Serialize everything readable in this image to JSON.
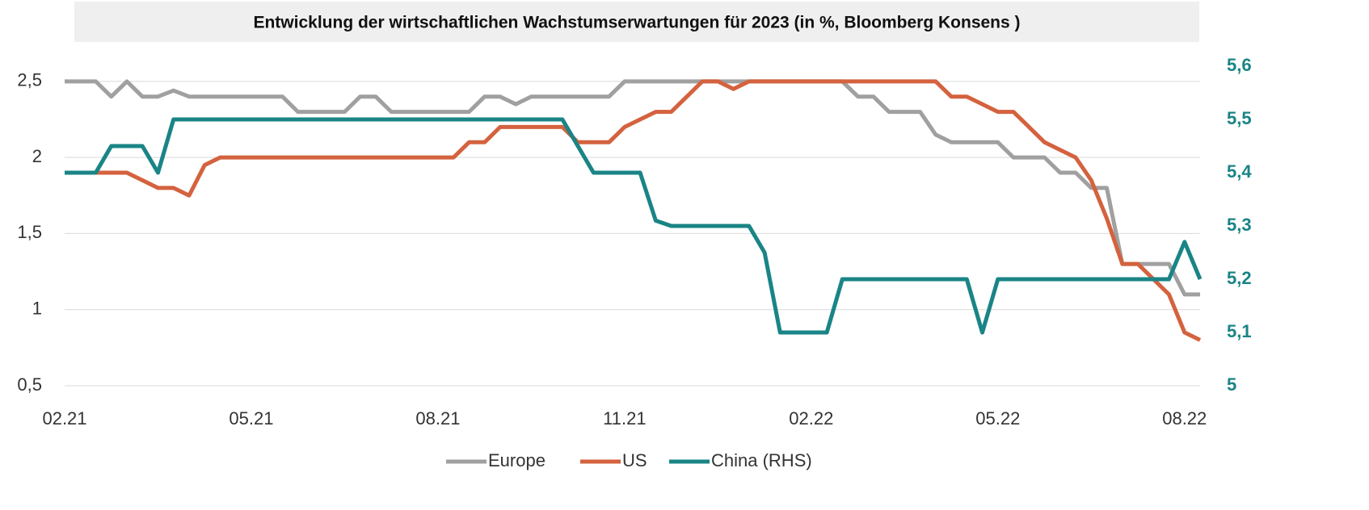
{
  "chart_data": {
    "type": "line",
    "title": "Entwicklung der wirtschaftlichen Wachstumserwartungen für 2023 (in %, Bloomberg Konsens )",
    "x": [
      0,
      0.25,
      0.5,
      0.75,
      1,
      1.25,
      1.5,
      1.75,
      2,
      2.25,
      2.5,
      2.75,
      3,
      3.25,
      3.5,
      3.75,
      4,
      4.25,
      4.5,
      4.75,
      5,
      5.25,
      5.5,
      5.75,
      6,
      6.25,
      6.5,
      6.75,
      7,
      7.25,
      7.5,
      7.75,
      8,
      8.25,
      8.5,
      8.75,
      9,
      9.25,
      9.5,
      9.75,
      10,
      10.25,
      10.5,
      10.75,
      11,
      11.25,
      11.5,
      11.75,
      12,
      12.25,
      12.5,
      12.75,
      13,
      13.25,
      13.5,
      13.75,
      14,
      14.25,
      14.5,
      14.75,
      15,
      15.25,
      15.5,
      15.75,
      16,
      16.25,
      16.5,
      16.75,
      17,
      17.25,
      17.5,
      17.75,
      18,
      18.25
    ],
    "xlim": [
      0,
      18.25
    ],
    "xticks": [
      {
        "value": 0,
        "label": "02.21"
      },
      {
        "value": 3,
        "label": "05.21"
      },
      {
        "value": 6,
        "label": "08.21"
      },
      {
        "value": 9,
        "label": "11.21"
      },
      {
        "value": 12,
        "label": "02.22"
      },
      {
        "value": 15,
        "label": "05.22"
      },
      {
        "value": 18,
        "label": "08.22"
      }
    ],
    "ylim": [
      0.5,
      2.6
    ],
    "yticks": [
      {
        "value": 0.5,
        "label": "0,5"
      },
      1,
      {
        "value": 1.5,
        "label": "1,5"
      },
      2,
      {
        "value": 2.5,
        "label": "2,5"
      }
    ],
    "y2lim": [
      5,
      5.6
    ],
    "y2ticks": [
      5,
      {
        "value": 5.1,
        "label": "5,1"
      },
      {
        "value": 5.2,
        "label": "5,2"
      },
      {
        "value": 5.3,
        "label": "5,3"
      },
      {
        "value": 5.4,
        "label": "5,4"
      },
      {
        "value": 5.5,
        "label": "5,5"
      },
      {
        "value": 5.6,
        "label": "5,6"
      }
    ],
    "grid": true,
    "legend": "bottom",
    "series": [
      {
        "name": "Europe",
        "color": "#a0a0a0",
        "values": [
          2.5,
          2.5,
          2.5,
          2.4,
          2.5,
          2.4,
          2.4,
          2.44,
          2.4,
          2.4,
          2.4,
          2.4,
          2.4,
          2.4,
          2.4,
          2.3,
          2.3,
          2.3,
          2.3,
          2.4,
          2.4,
          2.3,
          2.3,
          2.3,
          2.3,
          2.3,
          2.3,
          2.4,
          2.4,
          2.35,
          2.4,
          2.4,
          2.4,
          2.4,
          2.4,
          2.4,
          2.5,
          2.5,
          2.5,
          2.5,
          2.5,
          2.5,
          2.5,
          2.5,
          2.5,
          2.5,
          2.5,
          2.5,
          2.5,
          2.5,
          2.5,
          2.4,
          2.4,
          2.3,
          2.3,
          2.3,
          2.15,
          2.1,
          2.1,
          2.1,
          2.1,
          2.0,
          2.0,
          2.0,
          1.9,
          1.9,
          1.8,
          1.8,
          1.3,
          1.3,
          1.3,
          1.3,
          1.1,
          1.1
        ]
      },
      {
        "name": "US",
        "color": "#d4623e",
        "values": [
          1.9,
          1.9,
          1.9,
          1.9,
          1.9,
          1.85,
          1.8,
          1.8,
          1.75,
          1.95,
          2.0,
          2.0,
          2.0,
          2.0,
          2.0,
          2.0,
          2.0,
          2.0,
          2.0,
          2.0,
          2.0,
          2.0,
          2.0,
          2.0,
          2.0,
          2.0,
          2.1,
          2.1,
          2.2,
          2.2,
          2.2,
          2.2,
          2.2,
          2.1,
          2.1,
          2.1,
          2.2,
          2.25,
          2.3,
          2.3,
          2.4,
          2.5,
          2.5,
          2.45,
          2.5,
          2.5,
          2.5,
          2.5,
          2.5,
          2.5,
          2.5,
          2.5,
          2.5,
          2.5,
          2.5,
          2.5,
          2.5,
          2.4,
          2.4,
          2.35,
          2.3,
          2.3,
          2.2,
          2.1,
          2.05,
          2.0,
          1.85,
          1.6,
          1.3,
          1.3,
          1.2,
          1.1,
          0.85,
          0.8
        ]
      },
      {
        "name": "China (RHS)",
        "color": "#1a8486",
        "axis": "y2",
        "values": [
          5.4,
          5.4,
          5.4,
          5.45,
          5.45,
          5.45,
          5.4,
          5.5,
          5.5,
          5.5,
          5.5,
          5.5,
          5.5,
          5.5,
          5.5,
          5.5,
          5.5,
          5.5,
          5.5,
          5.5,
          5.5,
          5.5,
          5.5,
          5.5,
          5.5,
          5.5,
          5.5,
          5.5,
          5.5,
          5.5,
          5.5,
          5.5,
          5.5,
          5.45,
          5.4,
          5.4,
          5.4,
          5.4,
          5.31,
          5.3,
          5.3,
          5.3,
          5.3,
          5.3,
          5.3,
          5.25,
          5.1,
          5.1,
          5.1,
          5.1,
          5.2,
          5.2,
          5.2,
          5.2,
          5.2,
          5.2,
          5.2,
          5.2,
          5.2,
          5.1,
          5.2,
          5.2,
          5.2,
          5.2,
          5.2,
          5.2,
          5.2,
          5.2,
          5.2,
          5.2,
          5.2,
          5.2,
          5.27,
          5.2
        ]
      }
    ]
  }
}
